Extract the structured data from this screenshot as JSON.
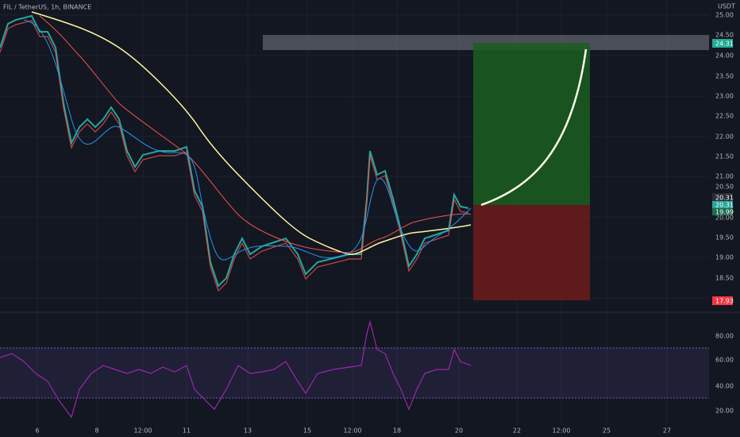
{
  "header": {
    "title": "FIL / TetherUS, 1h, BINANCE",
    "currency": "USDT"
  },
  "price_axis": [
    "25.00",
    "24.50",
    "24.00",
    "23.50",
    "23.00",
    "22.50",
    "22.00",
    "21.50",
    "21.00",
    "20.50",
    "20.00",
    "19.50",
    "19.00",
    "18.50"
  ],
  "time_axis": [
    "6",
    "8",
    "12:00",
    "11",
    "13",
    "15",
    "12:00",
    "18",
    "20",
    "22",
    "12:00",
    "25",
    "27"
  ],
  "rsi_axis": [
    "80.00",
    "60.00",
    "40.00",
    "20.00"
  ],
  "tags": {
    "target": "24.31",
    "last": "20.31",
    "current": "20.31",
    "ma": "19.99",
    "stop": "17.93"
  }
}
